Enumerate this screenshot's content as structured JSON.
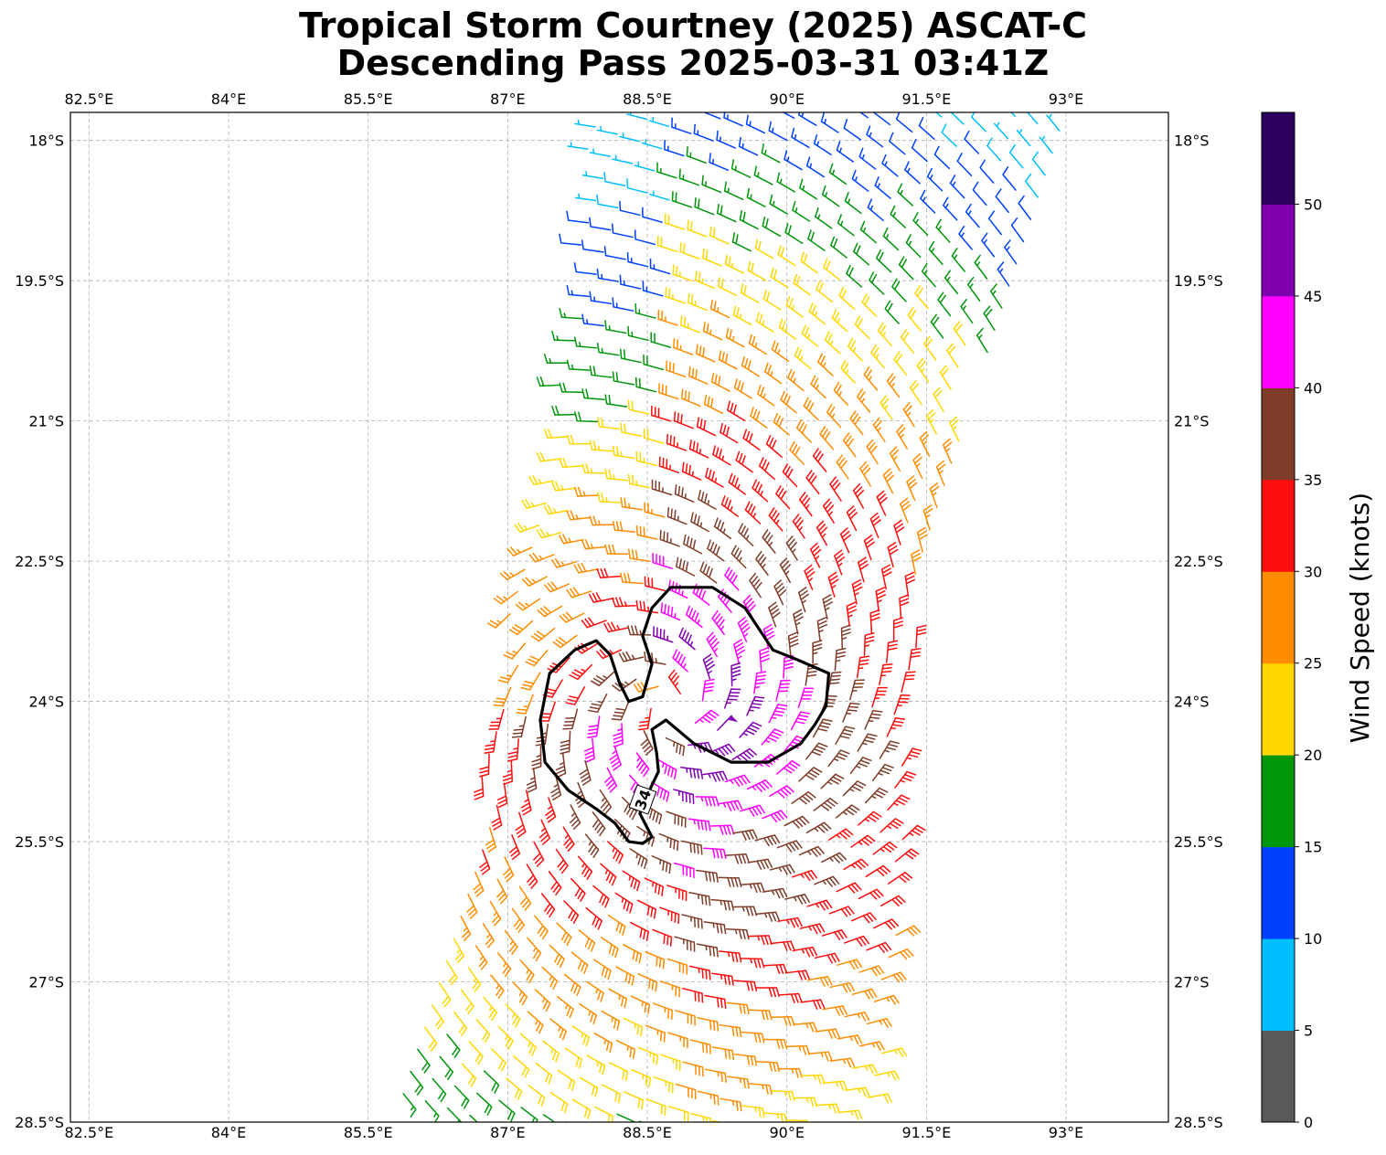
{
  "title": {
    "line1": "Tropical Storm Courtney (2025) ASCAT-C",
    "line2": "Descending Pass 2025-03-31 03:41Z"
  },
  "map": {
    "lon_range": [
      82.3,
      94.1
    ],
    "lat_range": [
      -28.5,
      -17.7
    ],
    "lon_ticks": [
      {
        "value": 82.5,
        "label": "82.5°E"
      },
      {
        "value": 84,
        "label": "84°E"
      },
      {
        "value": 85.5,
        "label": "85.5°E"
      },
      {
        "value": 87,
        "label": "87°E"
      },
      {
        "value": 88.5,
        "label": "88.5°E"
      },
      {
        "value": 90,
        "label": "90°E"
      },
      {
        "value": 91.5,
        "label": "91.5°E"
      },
      {
        "value": 93,
        "label": "93°E"
      }
    ],
    "lat_ticks": [
      {
        "value": -18,
        "label": "18°S"
      },
      {
        "value": -19.5,
        "label": "19.5°S"
      },
      {
        "value": -21,
        "label": "21°S"
      },
      {
        "value": -22.5,
        "label": "22.5°S"
      },
      {
        "value": -24,
        "label": "24°S"
      },
      {
        "value": -25.5,
        "label": "25.5°S"
      },
      {
        "value": -27,
        "label": "27°S"
      },
      {
        "value": -28.5,
        "label": "28.5°S"
      }
    ],
    "gridlines": true,
    "storm_center": {
      "lon": 88.75,
      "lat": -24.05
    },
    "contour": {
      "label": "34",
      "label_position": {
        "lon": 88.45,
        "lat": -25.05
      },
      "points": [
        [
          88.55,
          -23.0
        ],
        [
          88.75,
          -22.78
        ],
        [
          89.2,
          -22.78
        ],
        [
          89.55,
          -23.0
        ],
        [
          89.85,
          -23.45
        ],
        [
          90.1,
          -23.55
        ],
        [
          90.45,
          -23.7
        ],
        [
          90.42,
          -24.05
        ],
        [
          90.3,
          -24.25
        ],
        [
          90.15,
          -24.45
        ],
        [
          89.8,
          -24.65
        ],
        [
          89.4,
          -24.65
        ],
        [
          89.0,
          -24.45
        ],
        [
          88.7,
          -24.2
        ],
        [
          88.55,
          -24.3
        ],
        [
          88.6,
          -24.55
        ],
        [
          88.62,
          -24.75
        ],
        [
          88.5,
          -25.0
        ],
        [
          88.42,
          -25.2
        ],
        [
          88.55,
          -25.45
        ],
        [
          88.45,
          -25.52
        ],
        [
          88.3,
          -25.5
        ],
        [
          88.15,
          -25.3
        ],
        [
          87.95,
          -25.15
        ],
        [
          87.65,
          -24.95
        ],
        [
          87.4,
          -24.65
        ],
        [
          87.35,
          -24.2
        ],
        [
          87.45,
          -23.7
        ],
        [
          87.72,
          -23.45
        ],
        [
          87.95,
          -23.35
        ],
        [
          88.1,
          -23.5
        ],
        [
          88.2,
          -23.8
        ],
        [
          88.3,
          -24.0
        ],
        [
          88.45,
          -23.95
        ],
        [
          88.55,
          -23.6
        ],
        [
          88.45,
          -23.3
        ]
      ]
    },
    "swath": [
      [
        87.85,
        -17.5
      ],
      [
        93.25,
        -17.5
      ],
      [
        92.5,
        -19.3
      ],
      [
        91.9,
        -21.0
      ],
      [
        91.55,
        -22.5
      ],
      [
        91.3,
        -24.5
      ],
      [
        91.25,
        -26.0
      ],
      [
        91.05,
        -28.0
      ],
      [
        90.6,
        -28.6
      ],
      [
        85.8,
        -28.6
      ],
      [
        86.1,
        -27.0
      ],
      [
        86.55,
        -25.5
      ],
      [
        86.9,
        -24.0
      ],
      [
        87.05,
        -22.6
      ],
      [
        87.3,
        -21.6
      ],
      [
        87.7,
        -20.0
      ],
      [
        87.75,
        -18.8
      ]
    ],
    "barb_style": {
      "wind_direction": "cyclonic-clockwise"
    }
  },
  "colorbar": {
    "label": "Wind Speed (knots)",
    "bins": [
      {
        "from": 0,
        "to": 5,
        "color": "#595959"
      },
      {
        "from": 5,
        "to": 10,
        "color": "#00bfff"
      },
      {
        "from": 10,
        "to": 15,
        "color": "#0040ff"
      },
      {
        "from": 15,
        "to": 20,
        "color": "#00960a"
      },
      {
        "from": 20,
        "to": 25,
        "color": "#ffd700"
      },
      {
        "from": 25,
        "to": 30,
        "color": "#ff8c00"
      },
      {
        "from": 30,
        "to": 35,
        "color": "#ff0d0d"
      },
      {
        "from": 35,
        "to": 40,
        "color": "#7f3c28"
      },
      {
        "from": 40,
        "to": 45,
        "color": "#ff00ff"
      },
      {
        "from": 45,
        "to": 50,
        "color": "#8000b0"
      },
      {
        "from": 50,
        "to": 55,
        "color": "#2d005f"
      }
    ],
    "ticks": [
      0,
      5,
      10,
      15,
      20,
      25,
      30,
      35,
      40,
      45,
      50
    ]
  }
}
